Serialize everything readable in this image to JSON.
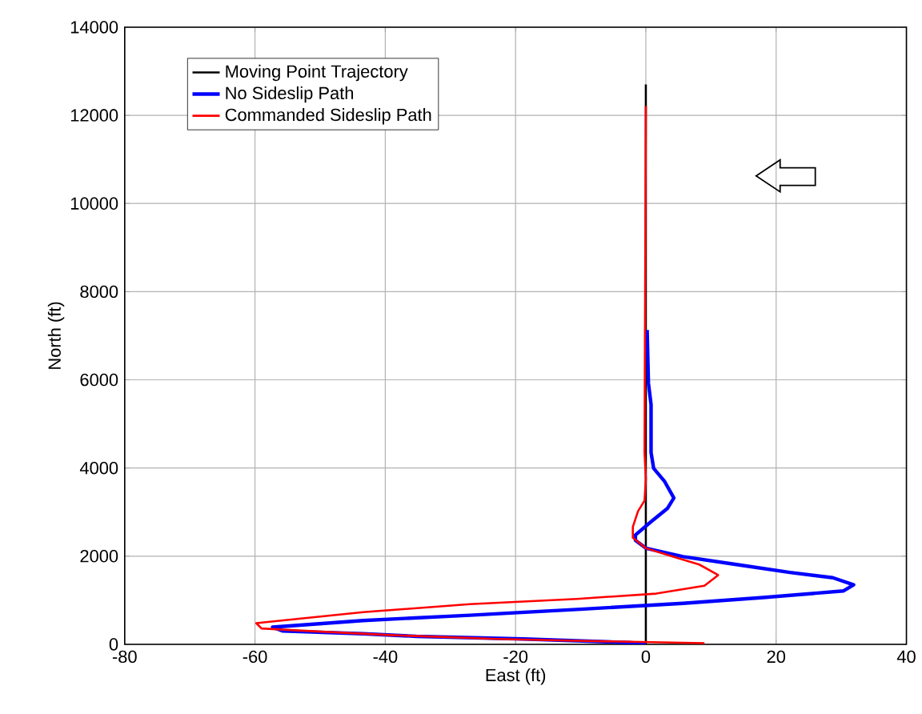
{
  "chart_data": {
    "type": "line",
    "xlabel": "East (ft)",
    "ylabel": "North (ft)",
    "xlim": [
      -80,
      40
    ],
    "xticks": [
      -80,
      -60,
      -40,
      -20,
      0,
      20,
      40
    ],
    "ylim": [
      0,
      14000
    ],
    "yticks": [
      0,
      2000,
      4000,
      6000,
      8000,
      10000,
      12000,
      14000
    ],
    "grid": true,
    "legend": "top left",
    "series": [
      {
        "name": "Moving Point Trajectory",
        "color": "#000000",
        "x": [
          0,
          0
        ],
        "values": [
          0,
          12700
        ]
      },
      {
        "name": "No Sideslip Path",
        "color": "#0000ff",
        "x": [
          0.2,
          0.4,
          0.8,
          0.8,
          1.2,
          2.9,
          4.3,
          3.3,
          0.8,
          -1.6,
          -1.6,
          0,
          5.7,
          13.9,
          22.1,
          28.7,
          31.9,
          30.3,
          18,
          5.7,
          -10.6,
          -27,
          -43.4,
          -57.3,
          -55.7,
          -43.4,
          -35.2,
          -18.8,
          -2.5,
          0
        ],
        "values": [
          7130,
          5920,
          5440,
          4350,
          3990,
          3690,
          3320,
          3080,
          2780,
          2480,
          2360,
          2180,
          1990,
          1810,
          1630,
          1510,
          1350,
          1210,
          1060,
          930,
          790,
          660,
          540,
          390,
          300,
          240,
          180,
          120,
          40,
          0
        ]
      },
      {
        "name": "Commanded Sideslip Path",
        "color": "#ff0000",
        "x": [
          0,
          -0.2,
          0,
          -0.2,
          -1.2,
          -2,
          -2,
          0,
          4.1,
          8.2,
          11.1,
          9,
          1.6,
          -10.6,
          -27,
          -43.4,
          -59.8,
          -59,
          -51.6,
          -39.3,
          -22.9,
          -10.6,
          9
        ],
        "values": [
          12210,
          4350,
          3750,
          3260,
          3020,
          2660,
          2420,
          2180,
          1990,
          1810,
          1570,
          1330,
          1150,
          1030,
          910,
          730,
          480,
          360,
          300,
          210,
          120,
          80,
          25
        ]
      }
    ]
  }
}
